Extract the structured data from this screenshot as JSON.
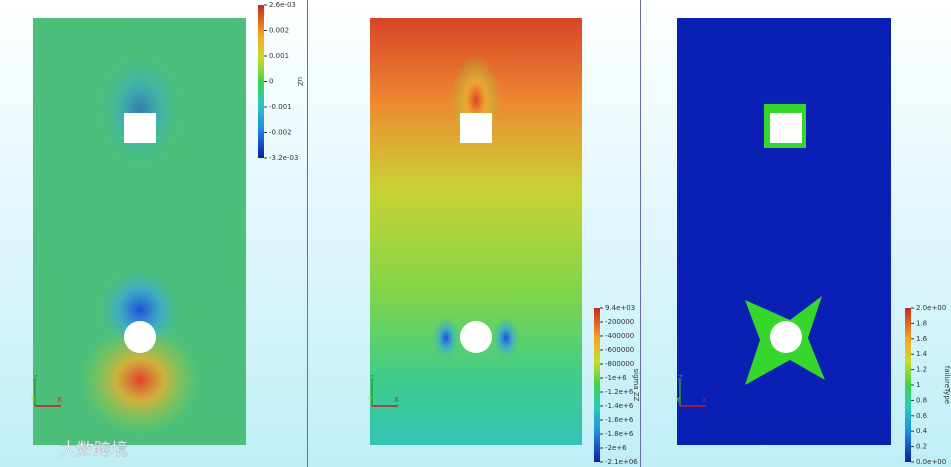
{
  "panels": [
    {
      "colorbar": {
        "title": "uZ",
        "ticks": [
          "2.6e-03",
          "0.002",
          "0.001",
          "0",
          "-0.001",
          "-0.002",
          "-3.2e-03"
        ]
      },
      "triad": [
        "Z",
        "Y",
        "X"
      ]
    },
    {
      "colorbar": {
        "title": "sigma ZZ",
        "ticks": [
          "9.4e+03",
          "-200000",
          "-400000",
          "-600000",
          "-800000",
          "-1e+6",
          "-1.2e+6",
          "-1.4e+6",
          "-1.6e+6",
          "-1.8e+6",
          "-2e+6",
          "-2.1e+06"
        ]
      },
      "triad": [
        "Z",
        "Y",
        "X"
      ]
    },
    {
      "colorbar": {
        "title": "failureType",
        "ticks": [
          "2.0e+00",
          "1.8",
          "1.6",
          "1.4",
          "1.2",
          "1",
          "0.8",
          "0.6",
          "0.4",
          "0.2",
          "0.0e+00"
        ]
      },
      "triad": [
        "Z",
        "Y",
        "X"
      ]
    }
  ],
  "watermark": "大数跨境"
}
